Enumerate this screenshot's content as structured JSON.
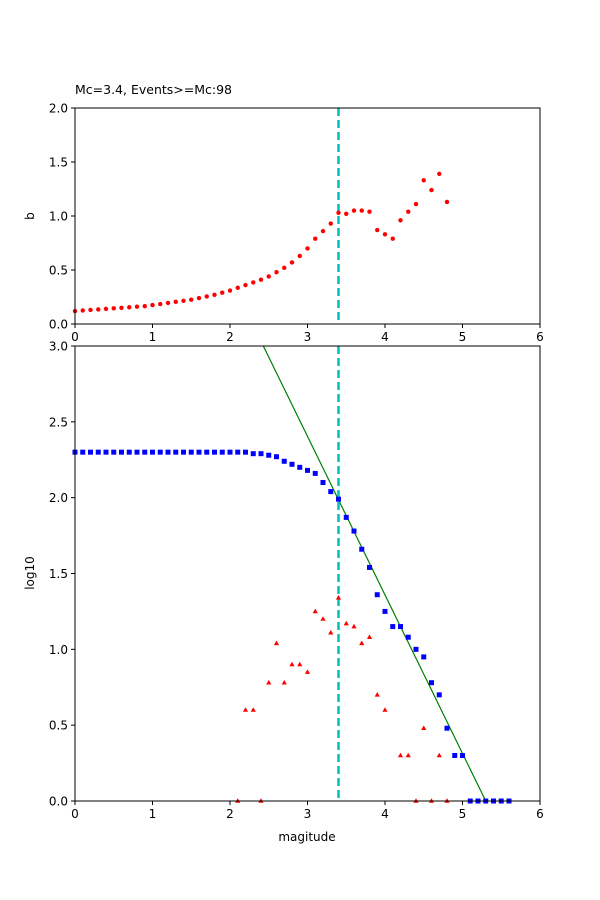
{
  "chart_data": [
    {
      "type": "scatter",
      "title": "Mc=3.4, Events>=Mc:98",
      "xlabel": "",
      "ylabel": "b",
      "xlim": [
        0,
        6
      ],
      "ylim": [
        0,
        2
      ],
      "xticks": [
        "0",
        "1",
        "2",
        "3",
        "4",
        "5",
        "6"
      ],
      "yticks": [
        "0.0",
        "0.5",
        "1.0",
        "1.5",
        "2.0"
      ],
      "mc_line": 3.4,
      "grid": false,
      "colors": {
        "points": "#ff0000",
        "mc_line": "#00bfbf"
      },
      "series": [
        {
          "x": [
            0.0,
            0.1,
            0.2,
            0.3,
            0.4,
            0.5,
            0.6,
            0.7,
            0.8,
            0.9,
            1.0,
            1.1,
            1.2,
            1.3,
            1.4,
            1.5,
            1.6,
            1.7,
            1.8,
            1.9,
            2.0,
            2.1,
            2.2,
            2.3,
            2.4,
            2.5,
            2.6,
            2.7,
            2.8,
            2.9,
            3.0,
            3.1,
            3.2,
            3.3,
            3.4,
            3.5,
            3.6,
            3.7,
            3.8,
            3.9,
            4.0,
            4.1,
            4.2,
            4.3,
            4.4,
            4.5,
            4.6,
            4.7,
            4.8
          ],
          "y": [
            0.12,
            0.125,
            0.13,
            0.135,
            0.14,
            0.145,
            0.15,
            0.155,
            0.16,
            0.165,
            0.175,
            0.185,
            0.195,
            0.205,
            0.215,
            0.225,
            0.24,
            0.255,
            0.27,
            0.29,
            0.31,
            0.335,
            0.36,
            0.385,
            0.41,
            0.44,
            0.48,
            0.52,
            0.57,
            0.63,
            0.7,
            0.79,
            0.86,
            0.93,
            1.03,
            1.02,
            1.05,
            1.05,
            1.04,
            0.87,
            0.83,
            0.79,
            0.96,
            1.04,
            1.11,
            1.33,
            1.24,
            1.39,
            1.13
          ]
        }
      ]
    },
    {
      "type": "scatter",
      "title": "",
      "xlabel": "magitude",
      "ylabel": "log10",
      "xlim": [
        0,
        6
      ],
      "ylim": [
        0,
        3
      ],
      "xticks": [
        "0",
        "1",
        "2",
        "3",
        "4",
        "5",
        "6"
      ],
      "yticks": [
        "0.0",
        "0.5",
        "1.0",
        "1.5",
        "2.0",
        "2.5",
        "3.0"
      ],
      "mc_line": 3.4,
      "grid": false,
      "colors": {
        "cumulative": "#0000ff",
        "noncumulative": "#ff0000",
        "fit": "#008000",
        "mc_line": "#00bfbf"
      },
      "fit_line": {
        "x": [
          2.43,
          5.3
        ],
        "y": [
          3.0,
          0.0
        ]
      },
      "series": [
        {
          "marker": "square",
          "x": [
            0.0,
            0.1,
            0.2,
            0.3,
            0.4,
            0.5,
            0.6,
            0.7,
            0.8,
            0.9,
            1.0,
            1.1,
            1.2,
            1.3,
            1.4,
            1.5,
            1.6,
            1.7,
            1.8,
            1.9,
            2.0,
            2.1,
            2.2,
            2.3,
            2.4,
            2.5,
            2.6,
            2.7,
            2.8,
            2.9,
            3.0,
            3.1,
            3.2,
            3.3,
            3.4,
            3.5,
            3.6,
            3.7,
            3.8,
            3.9,
            4.0,
            4.1,
            4.2,
            4.3,
            4.4,
            4.5,
            4.6,
            4.7,
            4.8,
            4.9,
            5.0,
            5.1,
            5.2,
            5.3,
            5.4,
            5.5,
            5.6
          ],
          "y": [
            2.3,
            2.3,
            2.3,
            2.3,
            2.3,
            2.3,
            2.3,
            2.3,
            2.3,
            2.3,
            2.3,
            2.3,
            2.3,
            2.3,
            2.3,
            2.3,
            2.3,
            2.3,
            2.3,
            2.3,
            2.3,
            2.3,
            2.3,
            2.29,
            2.29,
            2.28,
            2.27,
            2.24,
            2.22,
            2.2,
            2.18,
            2.16,
            2.1,
            2.04,
            1.99,
            1.87,
            1.78,
            1.66,
            1.54,
            1.36,
            1.25,
            1.15,
            1.15,
            1.08,
            1.0,
            0.95,
            0.78,
            0.7,
            0.48,
            0.3,
            0.3,
            0.0,
            0.0,
            0.0,
            0.0,
            0.0,
            0.0
          ]
        },
        {
          "marker": "triangle",
          "x": [
            2.1,
            2.2,
            2.3,
            2.4,
            2.5,
            2.6,
            2.7,
            2.8,
            2.9,
            3.0,
            3.1,
            3.2,
            3.3,
            3.4,
            3.5,
            3.6,
            3.7,
            3.8,
            3.9,
            4.0,
            4.2,
            4.3,
            4.4,
            4.5,
            4.6,
            4.7,
            4.8
          ],
          "y": [
            0.0,
            0.6,
            0.6,
            0.0,
            0.78,
            1.04,
            0.78,
            0.9,
            0.9,
            0.85,
            1.25,
            1.2,
            1.11,
            1.34,
            1.17,
            1.15,
            1.04,
            1.08,
            0.7,
            0.6,
            0.3,
            0.3,
            0.0,
            0.48,
            0.0,
            0.3,
            0.0
          ]
        }
      ]
    }
  ]
}
